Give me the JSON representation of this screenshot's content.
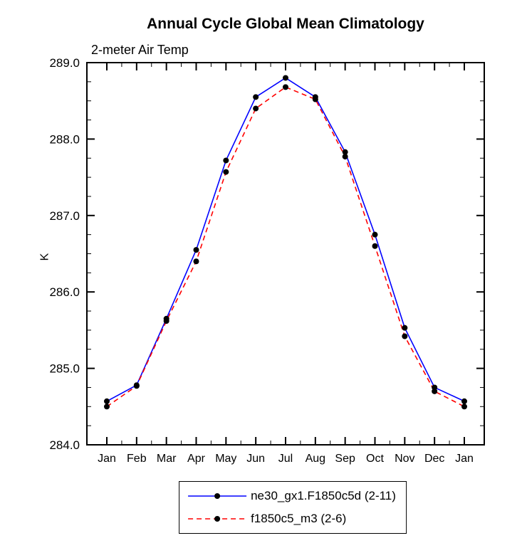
{
  "chart_data": {
    "type": "line",
    "title": "Annual Cycle Global Mean Climatology",
    "subtitle": "2-meter Air Temp",
    "xlabel": "",
    "ylabel": "K",
    "ylim": [
      284.0,
      289.0
    ],
    "ytick_interval": 1.0,
    "ytick_labels": [
      "284.0",
      "285.0",
      "286.0",
      "287.0",
      "288.0",
      "289.0"
    ],
    "categories": [
      "Jan",
      "Feb",
      "Mar",
      "Apr",
      "May",
      "Jun",
      "Jul",
      "Aug",
      "Sep",
      "Oct",
      "Nov",
      "Dec",
      "Jan"
    ],
    "grid": false,
    "legend_position": "bottom",
    "series": [
      {
        "name": "ne30_gx1.F1850c5d (2-11)",
        "color": "#0000ff",
        "dash": "solid",
        "marker": "circle",
        "marker_color": "#000000",
        "values": [
          284.57,
          284.78,
          285.65,
          286.55,
          287.72,
          288.55,
          288.8,
          288.55,
          287.83,
          286.75,
          285.53,
          284.75,
          284.57
        ]
      },
      {
        "name": "f1850c5_m3 (2-6)",
        "color": "#ff0000",
        "dash": "dashed",
        "marker": "circle",
        "marker_color": "#000000",
        "values": [
          284.5,
          284.77,
          285.62,
          286.4,
          287.57,
          288.4,
          288.68,
          288.52,
          287.77,
          286.6,
          285.42,
          284.7,
          284.5
        ]
      }
    ]
  }
}
